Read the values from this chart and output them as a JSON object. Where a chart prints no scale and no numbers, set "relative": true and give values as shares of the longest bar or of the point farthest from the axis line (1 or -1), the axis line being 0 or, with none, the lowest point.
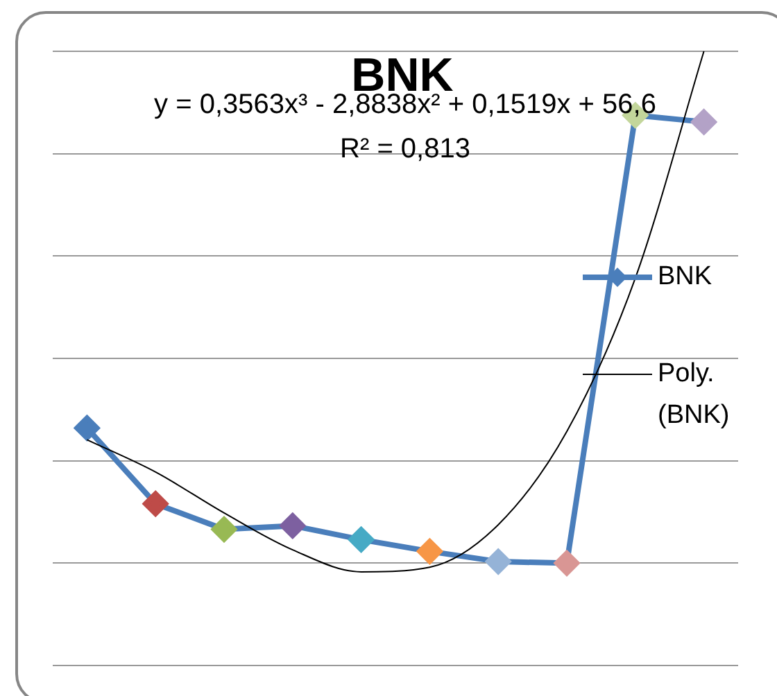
{
  "chart_data": {
    "type": "line",
    "title": "BNK",
    "relative": true,
    "categories": [
      null,
      null,
      null,
      null,
      null,
      null,
      null,
      null,
      null,
      null
    ],
    "series": [
      {
        "name": "BNK",
        "color": "#4a7ebb",
        "colors": [
          "#4a7ebb",
          "#be4b48",
          "#98b954",
          "#7d60a0",
          "#46aac5",
          "#f79646",
          "#95b3d7",
          "#d99694",
          "#c3d69b",
          "#b3a2c7"
        ],
        "values": [
          0.264,
          0.116,
          0.066,
          0.073,
          0.046,
          0.023,
          0.003,
          0,
          0.875,
          0.862
        ]
      },
      {
        "name": "Poly. (BNK)",
        "type": "line",
        "marker": "none",
        "color": "#000000",
        "values": [
          0.241,
          0.178,
          0.098,
          0.026,
          -0.017,
          -0.008,
          0.075,
          0.257,
          0.557,
          1.0
        ]
      }
    ],
    "annotations": [
      "y = 0,3563x³ - 2,8838x² + 0,1519x + 56,6",
      "R² = 0,813"
    ],
    "grid": "y",
    "legend": "right",
    "marker": "diamond",
    "line_style": "solid"
  }
}
